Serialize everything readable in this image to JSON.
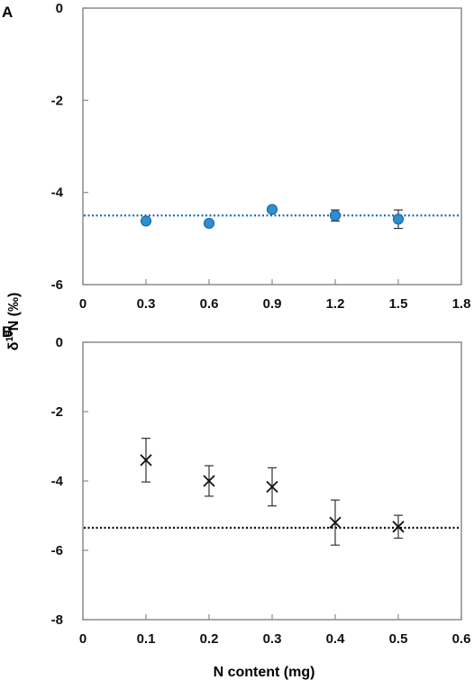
{
  "chart_data": [
    {
      "type": "scatter",
      "panel_label": "A",
      "xlim": [
        0,
        1.8
      ],
      "ylim": [
        -6,
        0
      ],
      "x_ticks": [
        "0",
        "0.3",
        "0.6",
        "0.9",
        "1.2",
        "1.5",
        "1.8"
      ],
      "y_ticks": [
        "0",
        "-2",
        "-4",
        "-6"
      ],
      "grid": false,
      "marker": "circle",
      "marker_color": "#2e8fd0",
      "reference_line": {
        "y": -4.5,
        "style": "dotted",
        "color": "#1f6fae"
      },
      "series": [
        {
          "x": [
            0.3,
            0.6,
            0.9,
            1.2,
            1.5
          ],
          "y": [
            -4.62,
            -4.67,
            -4.37,
            -4.5,
            -4.58
          ],
          "error": [
            0.05,
            0.05,
            0.05,
            0.12,
            0.2
          ]
        }
      ]
    },
    {
      "type": "scatter",
      "panel_label": "B",
      "xlim": [
        0,
        0.6
      ],
      "ylim": [
        -8,
        0
      ],
      "x_ticks": [
        "0",
        "0.1",
        "0.2",
        "0.3",
        "0.4",
        "0.5",
        "0.6"
      ],
      "y_ticks": [
        "0",
        "-2",
        "-4",
        "-6",
        "-8"
      ],
      "grid": false,
      "marker": "x",
      "marker_color": "#111111",
      "reference_line": {
        "y": -5.35,
        "style": "dotted",
        "color": "#000000"
      },
      "series": [
        {
          "x": [
            0.1,
            0.2,
            0.3,
            0.4,
            0.5
          ],
          "y": [
            -3.4,
            -4.0,
            -4.17,
            -5.2,
            -5.32
          ],
          "error": [
            0.63,
            0.44,
            0.55,
            0.65,
            0.33
          ]
        }
      ]
    }
  ],
  "shared": {
    "ylabel": "δ15N (‰)",
    "xlabel": "N content (mg)"
  }
}
